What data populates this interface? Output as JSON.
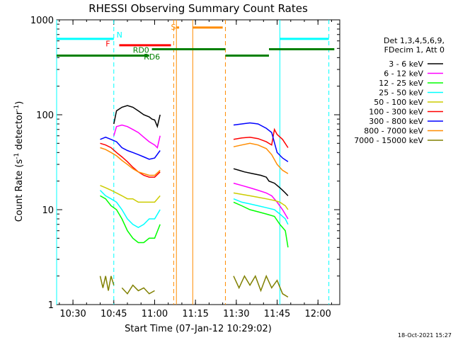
{
  "chart_data": {
    "type": "line",
    "title": "RHESSI Observing Summary Count Rates",
    "xlabel": "Start Time (07-Jan-12 10:29:02)",
    "ylabel": "Count Rate (s⁻¹ detector⁻¹)",
    "ylabel_parts": [
      "Count Rate (s",
      "-1",
      " detector",
      "-1",
      ")"
    ],
    "yscale": "log",
    "ylim": [
      1,
      1000
    ],
    "xlim": [
      "10:24",
      "12:08"
    ],
    "x_ticks": [
      "10:30",
      "10:45",
      "11:00",
      "11:15",
      "11:30",
      "11:45",
      "12:00"
    ],
    "y_ticks": [
      "1",
      "10",
      "100",
      "1000"
    ],
    "timestamp": "18-Oct-2021 15:27",
    "legend_header": [
      "Det 1,3,4,5,6,9,",
      "FDecim 1, Att 0"
    ],
    "legend_position": "right",
    "series": [
      {
        "name": "3 - 6 keV",
        "color": "#000000",
        "segments": [
          {
            "x": [
              "10:45",
              "10:46",
              "10:47",
              "10:48",
              "10:50",
              "10:52",
              "10:54",
              "10:56",
              "10:58",
              "10:59",
              "11:00",
              "11:01",
              "11:02"
            ],
            "y": [
              80,
              110,
              115,
              120,
              125,
              120,
              110,
              100,
              95,
              90,
              88,
              75,
              100
            ]
          },
          {
            "x": [
              "11:29",
              "11:31",
              "11:33",
              "11:36",
              "11:39",
              "11:41",
              "11:42",
              "11:44",
              "11:46",
              "11:47",
              "11:48",
              "11:49"
            ],
            "y": [
              27,
              26,
              25,
              24,
              23,
              22,
              20,
              19,
              17,
              16,
              15,
              14
            ]
          }
        ]
      },
      {
        "name": "6 - 12 keV",
        "color": "#ff00ff",
        "segments": [
          {
            "x": [
              "10:45",
              "10:46",
              "10:48",
              "10:50",
              "10:52",
              "10:54",
              "10:56",
              "10:58",
              "11:00",
              "11:01",
              "11:02"
            ],
            "y": [
              60,
              75,
              78,
              75,
              70,
              65,
              58,
              52,
              48,
              45,
              60
            ]
          },
          {
            "x": [
              "11:29",
              "11:32",
              "11:35",
              "11:38",
              "11:41",
              "11:43",
              "11:45",
              "11:47",
              "11:49"
            ],
            "y": [
              19,
              18,
              17,
              16,
              15,
              14,
              12,
              10,
              8
            ]
          }
        ]
      },
      {
        "name": "12 - 25 keV",
        "color": "#00ff00",
        "segments": [
          {
            "x": [
              "10:40",
              "10:42",
              "10:44",
              "10:46",
              "10:48",
              "10:50",
              "10:52",
              "10:54",
              "10:56",
              "10:58",
              "11:00",
              "11:02"
            ],
            "y": [
              14,
              13,
              11,
              10,
              8,
              6,
              5,
              4.5,
              4.5,
              5,
              5,
              7
            ]
          },
          {
            "x": [
              "11:29",
              "11:32",
              "11:35",
              "11:38",
              "11:41",
              "11:44",
              "11:46",
              "11:48",
              "11:49"
            ],
            "y": [
              12,
              11,
              10,
              9.5,
              9,
              8.5,
              7,
              6,
              4
            ]
          }
        ]
      },
      {
        "name": "25 - 50 keV",
        "color": "#00ffff",
        "segments": [
          {
            "x": [
              "10:40",
              "10:42",
              "10:44",
              "10:46",
              "10:48",
              "10:50",
              "10:52",
              "10:54",
              "10:56",
              "10:58",
              "11:00",
              "11:02"
            ],
            "y": [
              16,
              14,
              13,
              12,
              10,
              8,
              7,
              6.5,
              7,
              8,
              8,
              10
            ]
          },
          {
            "x": [
              "11:29",
              "11:32",
              "11:35",
              "11:38",
              "11:41",
              "11:44",
              "11:46",
              "11:48",
              "11:49"
            ],
            "y": [
              13,
              12,
              11.5,
              11,
              10.5,
              10,
              9,
              8,
              7
            ]
          }
        ]
      },
      {
        "name": "50 - 100 keV",
        "color": "#cccc00",
        "segments": [
          {
            "x": [
              "10:40",
              "10:42",
              "10:44",
              "10:46",
              "10:48",
              "10:50",
              "10:52",
              "10:54",
              "10:56",
              "10:58",
              "11:00",
              "11:02"
            ],
            "y": [
              18,
              17,
              16,
              15,
              14,
              13,
              13,
              12,
              12,
              12,
              12,
              14
            ]
          },
          {
            "x": [
              "11:29",
              "11:32",
              "11:35",
              "11:38",
              "11:41",
              "11:44",
              "11:46",
              "11:48",
              "11:49"
            ],
            "y": [
              15,
              14.5,
              14,
              13.5,
              13,
              12.5,
              12,
              11,
              10
            ]
          }
        ]
      },
      {
        "name": "100 - 300 keV",
        "color": "#ff0000",
        "segments": [
          {
            "x": [
              "10:40",
              "10:42",
              "10:44",
              "10:46",
              "10:48",
              "10:50",
              "10:52",
              "10:54",
              "10:56",
              "10:58",
              "11:00",
              "11:02"
            ],
            "y": [
              50,
              48,
              45,
              40,
              36,
              32,
              28,
              25,
              23,
              22,
              22,
              25
            ]
          },
          {
            "x": [
              "11:29",
              "11:32",
              "11:35",
              "11:38",
              "11:41",
              "11:43",
              "11:44",
              "11:45",
              "11:47",
              "11:49"
            ],
            "y": [
              55,
              57,
              58,
              56,
              52,
              48,
              70,
              62,
              55,
              45
            ]
          }
        ]
      },
      {
        "name": "300 - 800 keV",
        "color": "#0000ff",
        "segments": [
          {
            "x": [
              "10:40",
              "10:42",
              "10:44",
              "10:46",
              "10:48",
              "10:50",
              "10:52",
              "10:54",
              "10:56",
              "10:58",
              "11:00",
              "11:02"
            ],
            "y": [
              55,
              58,
              55,
              52,
              45,
              42,
              40,
              38,
              36,
              34,
              35,
              42
            ]
          },
          {
            "x": [
              "11:29",
              "11:32",
              "11:35",
              "11:38",
              "11:41",
              "11:43",
              "11:45",
              "11:47",
              "11:49"
            ],
            "y": [
              78,
              80,
              82,
              80,
              72,
              65,
              40,
              35,
              32
            ]
          }
        ]
      },
      {
        "name": "800 - 7000 keV",
        "color": "#ff8c00",
        "segments": [
          {
            "x": [
              "10:40",
              "10:42",
              "10:44",
              "10:46",
              "10:48",
              "10:50",
              "10:52",
              "10:54",
              "10:56",
              "10:58",
              "11:00",
              "11:02"
            ],
            "y": [
              45,
              43,
              40,
              37,
              33,
              30,
              27,
              25,
              24,
              23,
              23,
              26
            ]
          },
          {
            "x": [
              "11:29",
              "11:32",
              "11:35",
              "11:38",
              "11:41",
              "11:43",
              "11:45",
              "11:47",
              "11:49"
            ],
            "y": [
              46,
              48,
              50,
              48,
              44,
              38,
              30,
              26,
              24
            ]
          }
        ]
      },
      {
        "name": "7000 - 15000 keV",
        "color": "#808000",
        "segments": [
          {
            "x": [
              "10:40",
              "10:41",
              "10:42",
              "10:43",
              "10:44",
              "10:45"
            ],
            "y": [
              2,
              1.5,
              2,
              1.4,
              2,
              1.6
            ]
          },
          {
            "x": [
              "10:48",
              "10:50",
              "10:52",
              "10:54",
              "10:56",
              "10:58",
              "11:00"
            ],
            "y": [
              1.5,
              1.3,
              1.6,
              1.4,
              1.5,
              1.3,
              1.4
            ]
          },
          {
            "x": [
              "11:29",
              "11:31",
              "11:33",
              "11:35",
              "11:37",
              "11:39",
              "11:41",
              "11:43",
              "11:45",
              "11:47",
              "11:49"
            ],
            "y": [
              2,
              1.5,
              2,
              1.6,
              2,
              1.4,
              2,
              1.5,
              1.8,
              1.3,
              1.2
            ]
          }
        ]
      }
    ],
    "flag_bars": [
      {
        "label": "N",
        "color": "#00ffff",
        "level": 630,
        "intervals": [
          [
            "10:24",
            "10:45"
          ],
          [
            "11:46",
            "12:04"
          ]
        ]
      },
      {
        "label": "F",
        "color": "#ff0000",
        "level": 540,
        "intervals": [
          [
            "10:47",
            "11:06"
          ]
        ]
      },
      {
        "label": "S",
        "color": "#ff8c00",
        "level": 830,
        "intervals": [
          [
            "11:08",
            "11:09"
          ],
          [
            "11:14",
            "11:25"
          ]
        ]
      },
      {
        "label": "RD0",
        "color": "#008000",
        "level": 490,
        "intervals": [
          [
            "10:59",
            "11:26"
          ],
          [
            "11:42",
            "12:06"
          ]
        ]
      },
      {
        "label": "RD6",
        "color": "#008000",
        "level": 420,
        "intervals": [
          [
            "10:24",
            "10:58"
          ],
          [
            "11:26",
            "11:42"
          ]
        ]
      }
    ],
    "markers": [
      {
        "time": "10:45",
        "color": "#00ffff",
        "style": "dashed"
      },
      {
        "time": "10:24",
        "color": "#00ffff",
        "style": "solid"
      },
      {
        "time": "11:46",
        "color": "#00ffff",
        "style": "solid"
      },
      {
        "time": "12:04",
        "color": "#00ffff",
        "style": "dashed"
      },
      {
        "time": "11:07",
        "color": "#ff8c00",
        "style": "dashed"
      },
      {
        "time": "11:08",
        "color": "#ff8c00",
        "style": "solid"
      },
      {
        "time": "11:14",
        "color": "#ff8c00",
        "style": "solid"
      },
      {
        "time": "11:26",
        "color": "#ff8c00",
        "style": "dashed"
      }
    ]
  }
}
